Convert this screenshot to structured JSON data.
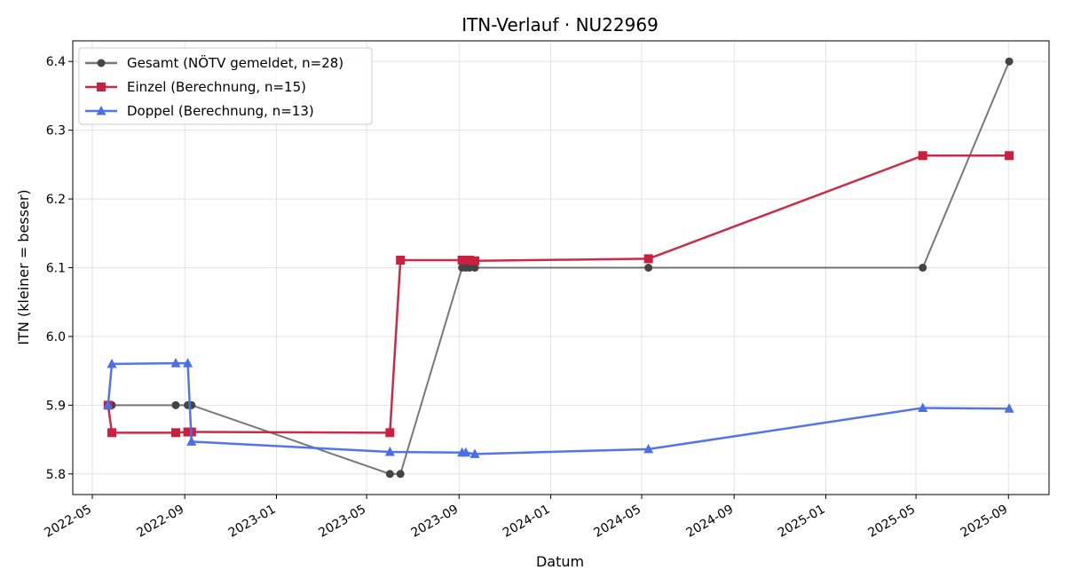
{
  "chart_data": {
    "type": "line",
    "title": "ITN-Verlauf · NU22969",
    "xlabel": "Datum",
    "ylabel": "ITN  (kleiner = besser)",
    "x_axis": "date",
    "xlim": [
      "2022-04-05",
      "2025-10-25"
    ],
    "ylim": [
      5.77,
      6.43
    ],
    "x_ticks": [
      "2022-05",
      "2022-09",
      "2023-01",
      "2023-05",
      "2023-09",
      "2024-01",
      "2024-05",
      "2024-09",
      "2025-01",
      "2025-05",
      "2025-09"
    ],
    "y_ticks": [
      5.8,
      5.9,
      6.0,
      6.1,
      6.2,
      6.3,
      6.4
    ],
    "y_tick_labels": [
      "5.8",
      "5.9",
      "6.0",
      "6.1",
      "6.2",
      "6.3",
      "6.4"
    ],
    "grid": true,
    "legend_position": "top-left",
    "series": [
      {
        "name": "Gesamt (NÖTV gemeldet, n=28)",
        "color": "#444444",
        "marker": "circle",
        "points": [
          {
            "x": "2022-05-25",
            "y": 5.9
          },
          {
            "x": "2022-05-27",
            "y": 5.9
          },
          {
            "x": "2022-08-20",
            "y": 5.9
          },
          {
            "x": "2022-09-05",
            "y": 5.9
          },
          {
            "x": "2022-09-10",
            "y": 5.9
          },
          {
            "x": "2023-06-01",
            "y": 5.8
          },
          {
            "x": "2023-06-15",
            "y": 5.8
          },
          {
            "x": "2023-09-05",
            "y": 6.1
          },
          {
            "x": "2023-09-10",
            "y": 6.1
          },
          {
            "x": "2023-09-15",
            "y": 6.1
          },
          {
            "x": "2023-09-22",
            "y": 6.1
          },
          {
            "x": "2024-05-10",
            "y": 6.1
          },
          {
            "x": "2025-05-10",
            "y": 6.1
          },
          {
            "x": "2025-09-02",
            "y": 6.4
          }
        ]
      },
      {
        "name": "Einzel (Berechnung, n=15)",
        "color": "#c8203e",
        "marker": "square",
        "points": [
          {
            "x": "2022-05-22",
            "y": 5.9
          },
          {
            "x": "2022-05-27",
            "y": 5.86
          },
          {
            "x": "2022-08-20",
            "y": 5.86
          },
          {
            "x": "2022-09-05",
            "y": 5.861
          },
          {
            "x": "2022-09-10",
            "y": 5.861
          },
          {
            "x": "2023-06-01",
            "y": 5.86
          },
          {
            "x": "2023-06-15",
            "y": 6.111
          },
          {
            "x": "2023-09-05",
            "y": 6.111
          },
          {
            "x": "2023-09-10",
            "y": 6.111
          },
          {
            "x": "2023-09-15",
            "y": 6.111
          },
          {
            "x": "2023-09-22",
            "y": 6.11
          },
          {
            "x": "2024-05-10",
            "y": 6.113
          },
          {
            "x": "2025-05-10",
            "y": 6.263
          },
          {
            "x": "2025-09-02",
            "y": 6.263
          }
        ]
      },
      {
        "name": "Doppel (Berechnung, n=13)",
        "color": "#4a6ee8",
        "marker": "triangle",
        "points": [
          {
            "x": "2022-05-22",
            "y": 5.9
          },
          {
            "x": "2022-05-27",
            "y": 5.96
          },
          {
            "x": "2022-08-20",
            "y": 5.961
          },
          {
            "x": "2022-09-05",
            "y": 5.961
          },
          {
            "x": "2022-09-10",
            "y": 5.847
          },
          {
            "x": "2023-06-01",
            "y": 5.832
          },
          {
            "x": "2023-09-05",
            "y": 5.831
          },
          {
            "x": "2023-09-10",
            "y": 5.831
          },
          {
            "x": "2023-09-22",
            "y": 5.829
          },
          {
            "x": "2024-05-10",
            "y": 5.836
          },
          {
            "x": "2025-05-10",
            "y": 5.896
          },
          {
            "x": "2025-09-02",
            "y": 5.895
          }
        ]
      }
    ]
  }
}
